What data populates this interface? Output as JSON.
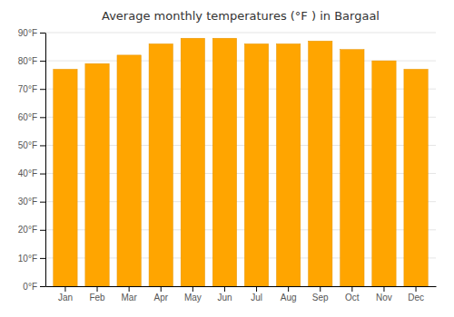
{
  "chart_data": {
    "type": "bar",
    "title": "Average monthly temperatures (°F ) in Bargaal",
    "categories": [
      "Jan",
      "Feb",
      "Mar",
      "Apr",
      "May",
      "Jun",
      "Jul",
      "Aug",
      "Sep",
      "Oct",
      "Nov",
      "Dec"
    ],
    "values": [
      77,
      79,
      82,
      86,
      88,
      88,
      86,
      86,
      87,
      84,
      80,
      77
    ],
    "color": "#FFA500",
    "ylim": [
      0,
      90
    ],
    "yticks": [
      {
        "value": 0,
        "label": "0°F"
      },
      {
        "value": 10,
        "label": "10°F"
      },
      {
        "value": 20,
        "label": "20°F"
      },
      {
        "value": 30,
        "label": "30°F"
      },
      {
        "value": 40,
        "label": "40°F"
      },
      {
        "value": 50,
        "label": "50°F"
      },
      {
        "value": 60,
        "label": "60°F"
      },
      {
        "value": 70,
        "label": "70°F"
      },
      {
        "value": 80,
        "label": "80°F"
      },
      {
        "value": 90,
        "label": "90°F"
      }
    ],
    "grid": true
  }
}
